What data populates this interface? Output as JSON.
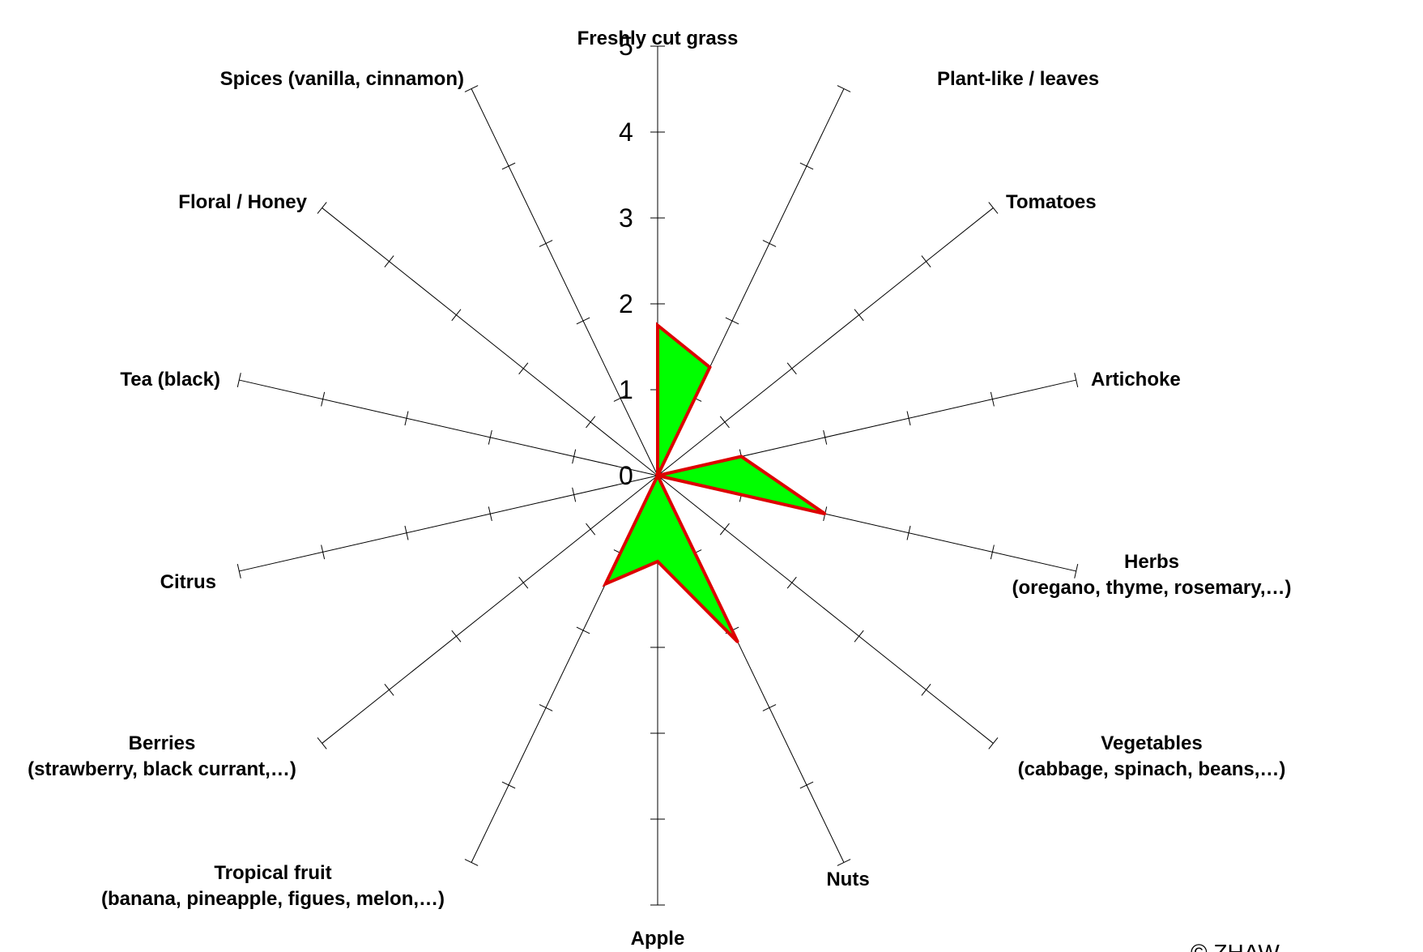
{
  "chart_data": {
    "type": "radar",
    "axes": [
      {
        "label": [
          "Freshly cut grass"
        ],
        "value": 1.75
      },
      {
        "label": [
          "Plant-like / leaves"
        ],
        "value": 1.4
      },
      {
        "label": [
          "Tomatoes"
        ],
        "value": 0
      },
      {
        "label": [
          "Artichoke"
        ],
        "value": 1.0
      },
      {
        "label": [
          "Herbs",
          "(oregano, thyme, rosemary,…)"
        ],
        "value": 2.0
      },
      {
        "label": [
          "Vegetables",
          "(cabbage, spinach, beans,…)"
        ],
        "value": 0
      },
      {
        "label": [
          "Nuts"
        ],
        "value": 2.15
      },
      {
        "label": [
          "Apple"
        ],
        "value": 1.0
      },
      {
        "label": [
          "Tropical fruit",
          "(banana, pineapple, figues, melon,…)"
        ],
        "value": 1.4
      },
      {
        "label": [
          "Berries",
          "(strawberry, black currant,…)"
        ],
        "value": 0
      },
      {
        "label": [
          "Citrus"
        ],
        "value": 0
      },
      {
        "label": [
          "Tea (black)"
        ],
        "value": 0
      },
      {
        "label": [
          "Floral / Honey"
        ],
        "value": 0
      },
      {
        "label": [
          "Spices (vanilla, cinnamon)"
        ],
        "value": 0
      }
    ],
    "range": [
      0,
      5
    ],
    "tick_labels": [
      "0",
      "1",
      "2",
      "3",
      "4",
      "5"
    ],
    "colors": {
      "fill": "#00ff00",
      "stroke": "#dd0000",
      "axis": "#000000"
    }
  },
  "copyright": "© ZHAW"
}
